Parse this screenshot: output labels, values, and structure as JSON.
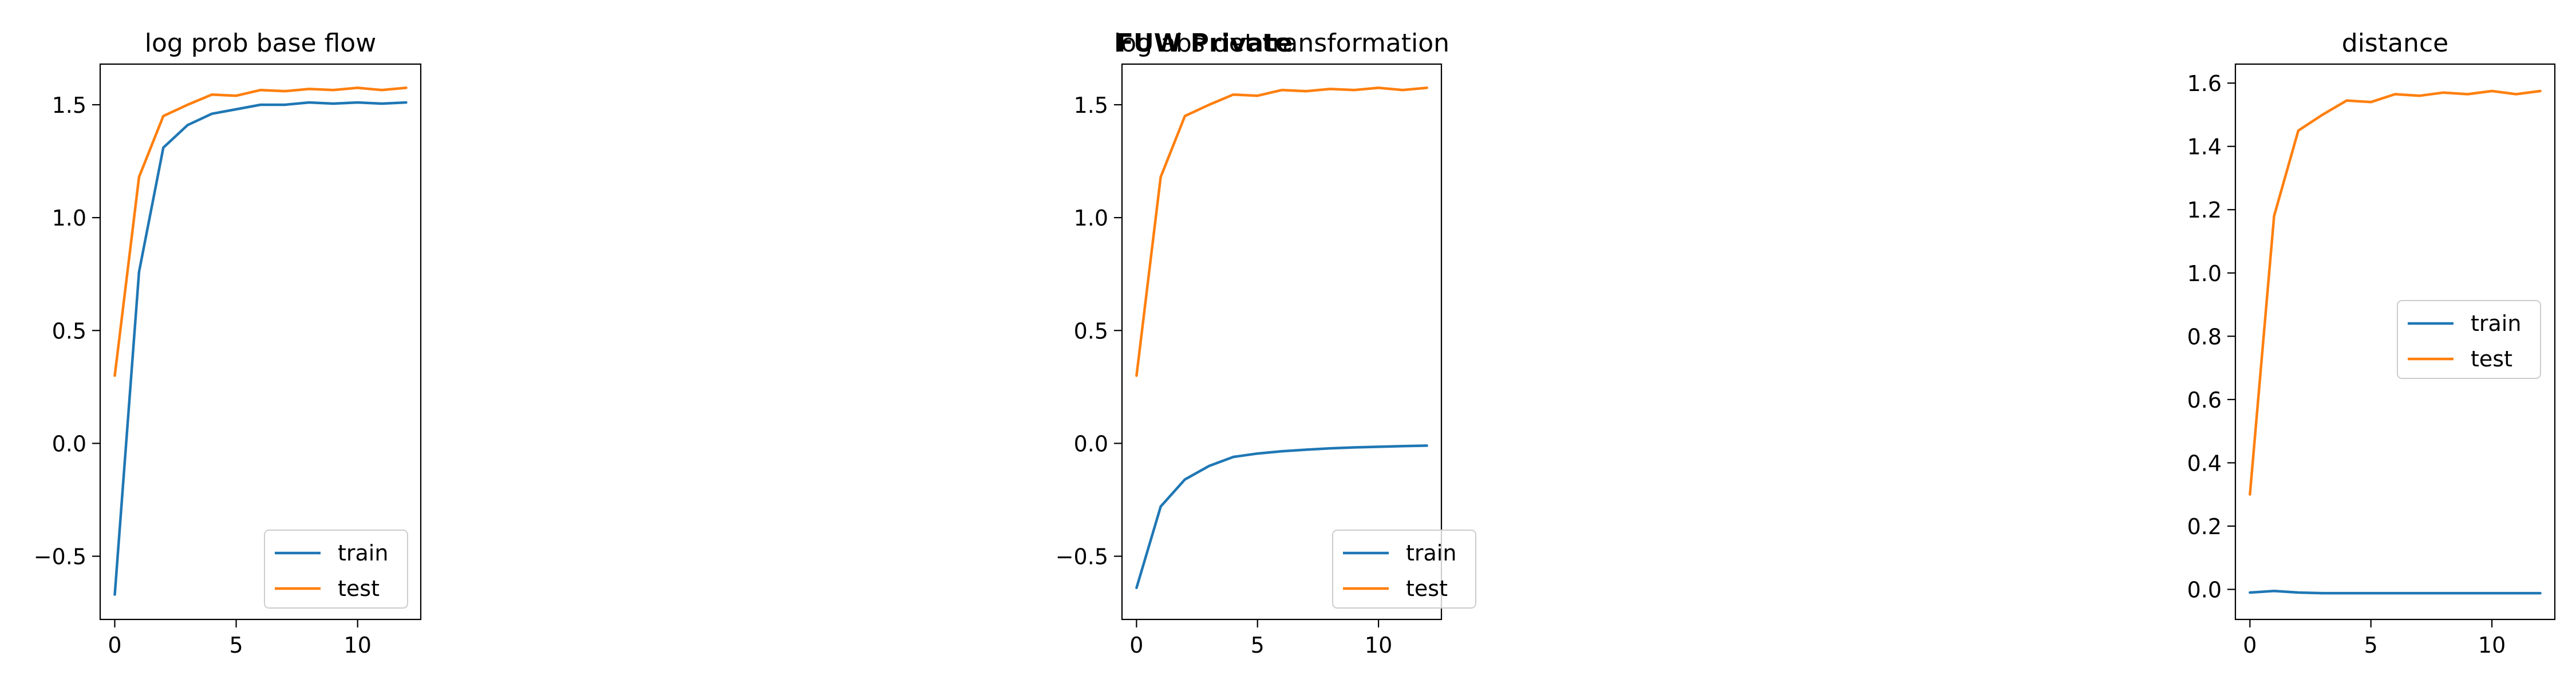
{
  "figure": {
    "label": "FUW Private"
  },
  "chart_data": [
    {
      "type": "line",
      "title": "log prob base flow",
      "x": [
        0,
        1,
        2,
        3,
        4,
        5,
        6,
        7,
        8,
        9,
        10,
        11,
        12
      ],
      "xticks": [
        0,
        5,
        10
      ],
      "ylim": [
        -0.78,
        1.68
      ],
      "yticks": [
        -0.5,
        0.0,
        0.5,
        1.0,
        1.5
      ],
      "yticklabels": [
        "−0.5",
        "0.0",
        "0.5",
        "1.0",
        "1.5"
      ],
      "legend": {
        "position": "lower right"
      },
      "series": [
        {
          "name": "train",
          "color": "#1f77b4",
          "values": [
            -0.67,
            0.76,
            1.31,
            1.41,
            1.46,
            1.48,
            1.5,
            1.5,
            1.51,
            1.505,
            1.51,
            1.505,
            1.51
          ]
        },
        {
          "name": "test",
          "color": "#ff7f0e",
          "values": [
            0.3,
            1.18,
            1.45,
            1.5,
            1.545,
            1.54,
            1.565,
            1.56,
            1.57,
            1.565,
            1.575,
            1.565,
            1.575
          ]
        }
      ]
    },
    {
      "type": "line",
      "title": "log abs det transformation",
      "x": [
        0,
        1,
        2,
        3,
        4,
        5,
        6,
        7,
        8,
        9,
        10,
        11,
        12
      ],
      "xticks": [
        0,
        5,
        10
      ],
      "ylim": [
        -0.78,
        1.68
      ],
      "yticks": [
        -0.5,
        0.0,
        0.5,
        1.0,
        1.5
      ],
      "yticklabels": [
        "−0.5",
        "0.0",
        "0.5",
        "1.0",
        "1.5"
      ],
      "legend": {
        "position": "lower right"
      },
      "series": [
        {
          "name": "train",
          "color": "#1f77b4",
          "values": [
            -0.64,
            -0.28,
            -0.16,
            -0.1,
            -0.06,
            -0.045,
            -0.035,
            -0.028,
            -0.022,
            -0.018,
            -0.015,
            -0.012,
            -0.01
          ]
        },
        {
          "name": "test",
          "color": "#ff7f0e",
          "values": [
            0.3,
            1.18,
            1.45,
            1.5,
            1.545,
            1.54,
            1.565,
            1.56,
            1.57,
            1.565,
            1.575,
            1.565,
            1.575
          ]
        }
      ]
    },
    {
      "type": "line",
      "title": "distance",
      "x": [
        0,
        1,
        2,
        3,
        4,
        5,
        6,
        7,
        8,
        9,
        10,
        11,
        12
      ],
      "xticks": [
        0,
        5,
        10
      ],
      "ylim": [
        -0.095,
        1.66
      ],
      "yticks": [
        0.0,
        0.2,
        0.4,
        0.6,
        0.8,
        1.0,
        1.2,
        1.4,
        1.6
      ],
      "yticklabels": [
        "0.0",
        "0.2",
        "0.4",
        "0.6",
        "0.8",
        "1.0",
        "1.2",
        "1.4",
        "1.6"
      ],
      "legend": {
        "position": "center right"
      },
      "series": [
        {
          "name": "train",
          "color": "#1f77b4",
          "values": [
            -0.01,
            -0.005,
            -0.01,
            -0.012,
            -0.012,
            -0.012,
            -0.012,
            -0.012,
            -0.012,
            -0.012,
            -0.012,
            -0.012,
            -0.012
          ]
        },
        {
          "name": "test",
          "color": "#ff7f0e",
          "values": [
            0.3,
            1.18,
            1.45,
            1.5,
            1.545,
            1.54,
            1.565,
            1.56,
            1.57,
            1.565,
            1.575,
            1.565,
            1.575
          ]
        }
      ]
    }
  ]
}
